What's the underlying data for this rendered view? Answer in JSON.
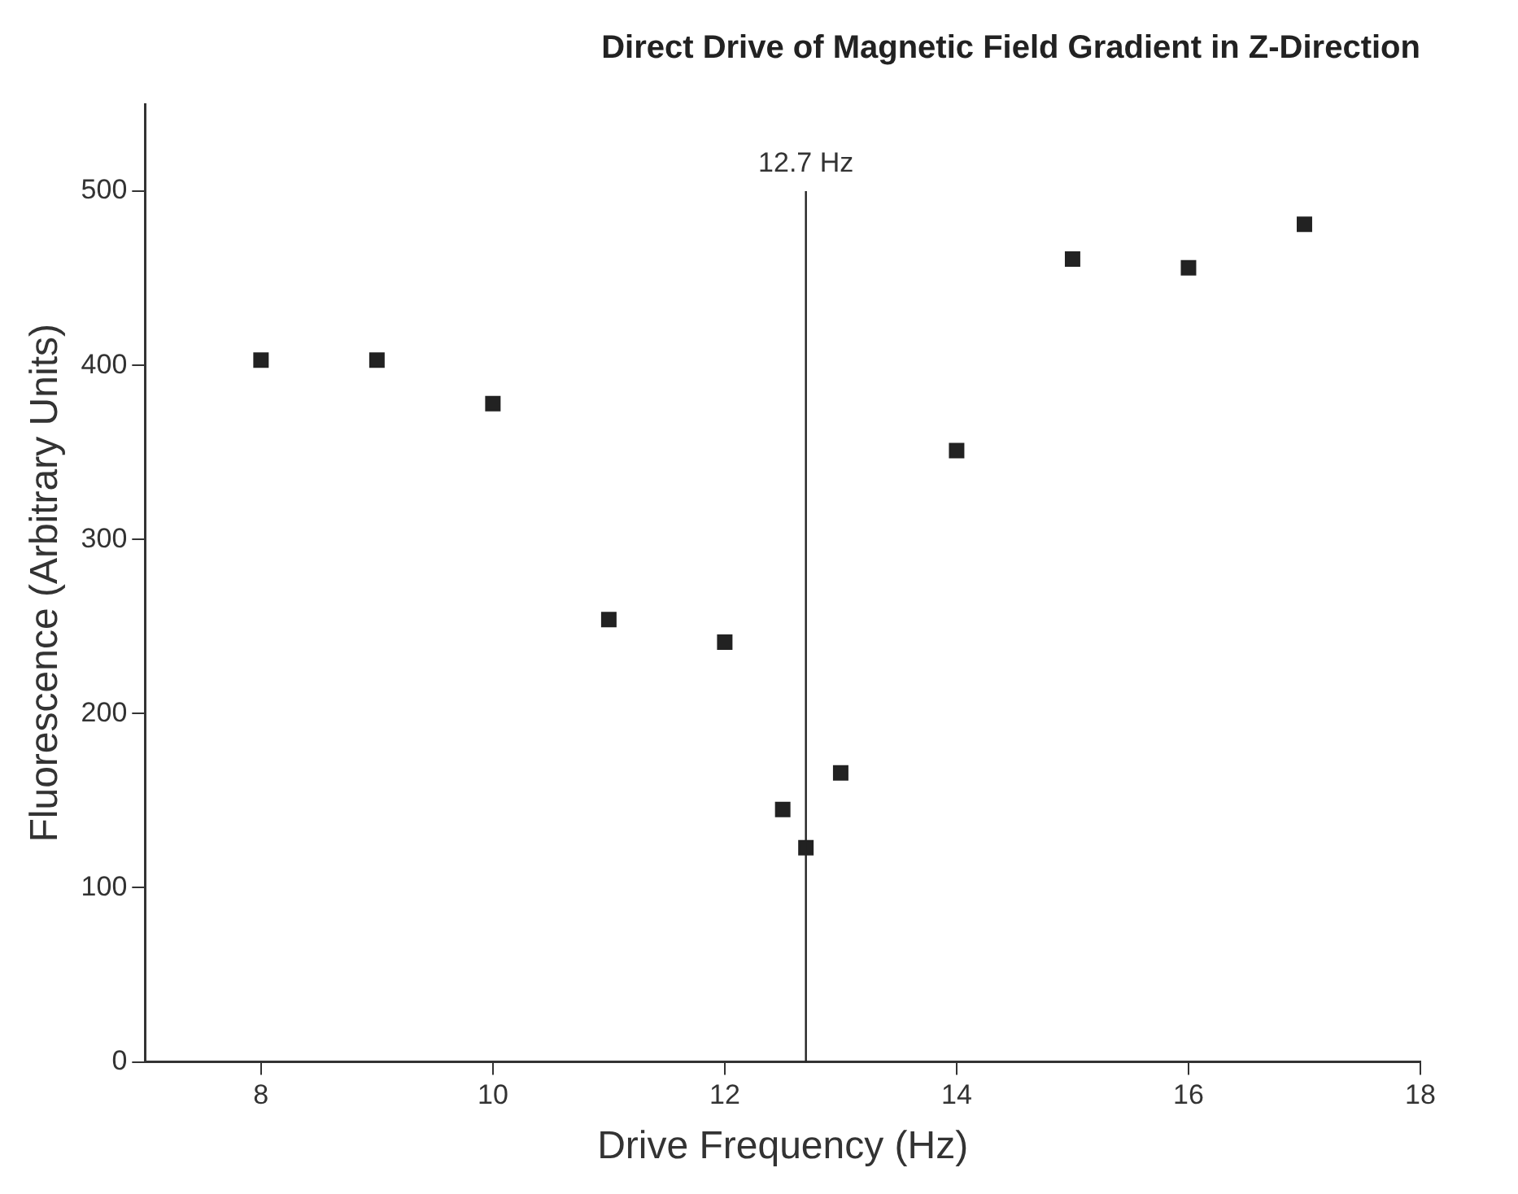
{
  "chart_data": {
    "type": "scatter",
    "title": "Direct Drive of Magnetic Field Gradient in Z-Direction",
    "xlabel": "Drive Frequency (Hz)",
    "ylabel": "Fluorescence (Arbitrary Units)",
    "x": [
      8,
      9,
      10,
      11,
      12,
      12.5,
      12.7,
      13,
      14,
      15,
      16,
      17
    ],
    "series": [
      {
        "color": "#222222",
        "values": [
          403,
          403,
          378,
          254,
          241,
          145,
          123,
          166,
          351,
          461,
          456,
          481
        ]
      }
    ],
    "xlim": [
      7,
      18
    ],
    "xticks": [
      8,
      10,
      12,
      14,
      16,
      18
    ],
    "ylim": [
      0,
      550
    ],
    "yticks": [
      0,
      100,
      200,
      300,
      400,
      500
    ],
    "ref_lines": [
      {
        "axis": "x",
        "value": 12.7,
        "label": "12.7 Hz",
        "color": "#222222"
      }
    ],
    "grid": false,
    "legend": false,
    "marker": "square"
  }
}
